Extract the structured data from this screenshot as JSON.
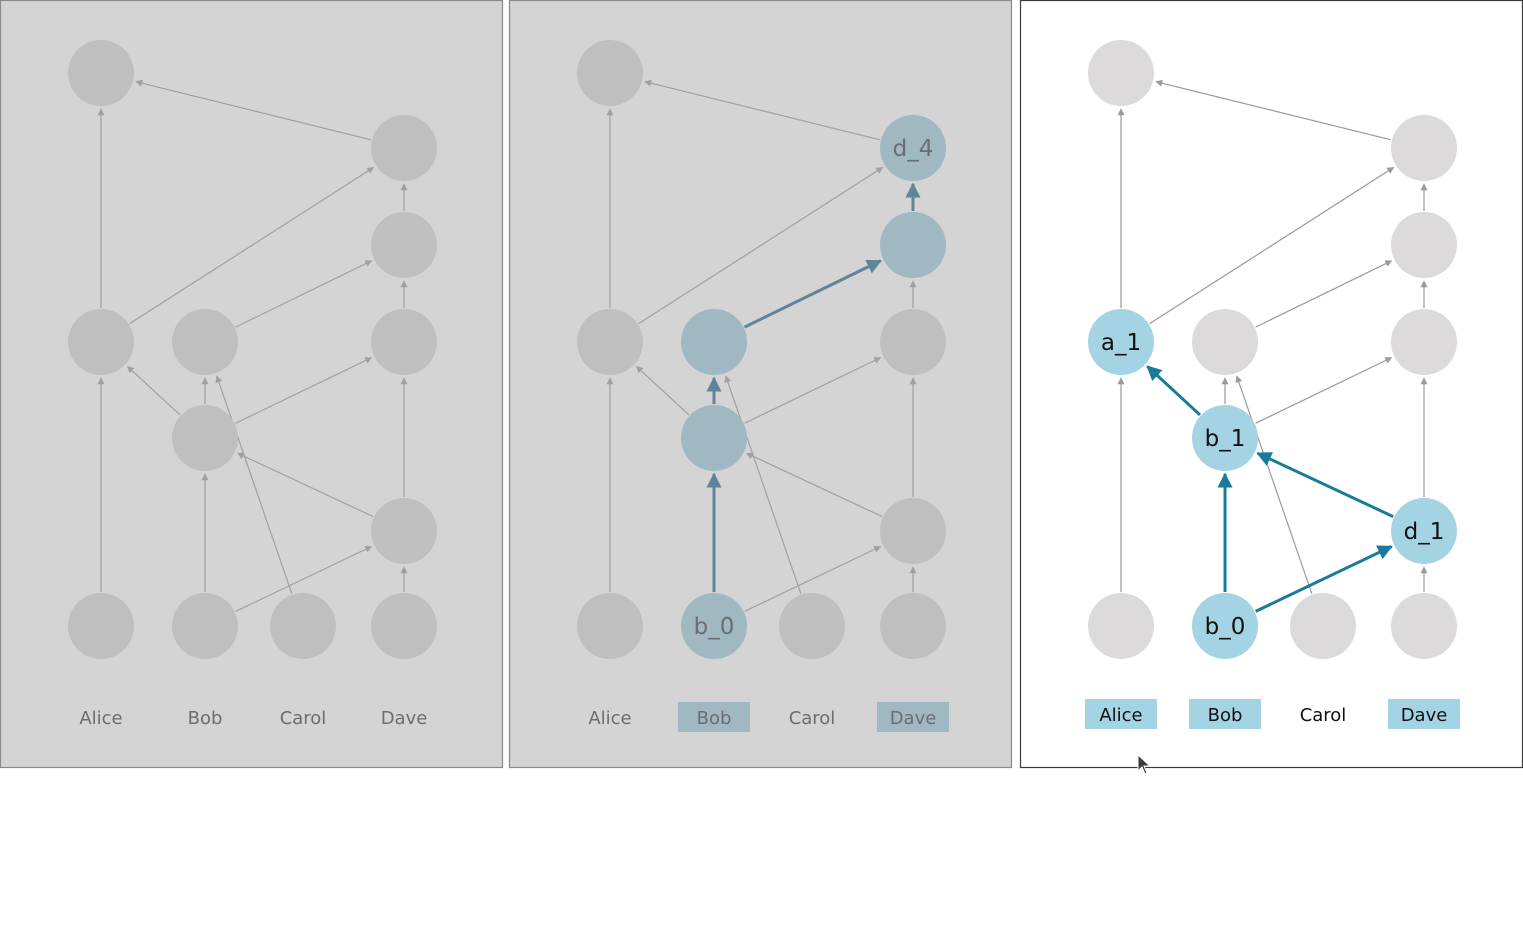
{
  "panels": [
    {
      "id": "panel-1",
      "theme": "dimmed",
      "columns": [
        {
          "key": "alice",
          "label": "Alice",
          "highlighted": false
        },
        {
          "key": "bob",
          "label": "Bob",
          "highlighted": false
        },
        {
          "key": "carol",
          "label": "Carol",
          "highlighted": false
        },
        {
          "key": "dave",
          "label": "Dave",
          "highlighted": false
        }
      ],
      "highlight_nodes": [],
      "highlight_edges": [],
      "node_labels": {}
    },
    {
      "id": "panel-2",
      "theme": "dimmed",
      "columns": [
        {
          "key": "alice",
          "label": "Alice",
          "highlighted": false
        },
        {
          "key": "bob",
          "label": "Bob",
          "highlighted": true
        },
        {
          "key": "carol",
          "label": "Carol",
          "highlighted": false
        },
        {
          "key": "dave",
          "label": "Dave",
          "highlighted": true
        }
      ],
      "highlight_nodes": [
        "b0",
        "b1",
        "b_mid",
        "d_mid",
        "d4"
      ],
      "highlight_edges": [
        [
          "b0",
          "b1"
        ],
        [
          "b1",
          "b_mid"
        ],
        [
          "b_mid",
          "d_mid"
        ],
        [
          "d_mid",
          "d4"
        ]
      ],
      "node_labels": {
        "b0": "b_0",
        "d4": "d_4"
      }
    },
    {
      "id": "panel-3",
      "theme": "active",
      "columns": [
        {
          "key": "alice",
          "label": "Alice",
          "highlighted": true
        },
        {
          "key": "bob",
          "label": "Bob",
          "highlighted": true
        },
        {
          "key": "carol",
          "label": "Carol",
          "highlighted": false
        },
        {
          "key": "dave",
          "label": "Dave",
          "highlighted": true
        }
      ],
      "highlight_nodes": [
        "a1",
        "b1",
        "b0",
        "d1"
      ],
      "highlight_edges": [
        [
          "b0",
          "b1"
        ],
        [
          "b0",
          "d1"
        ],
        [
          "d1",
          "b1"
        ],
        [
          "b1",
          "a1"
        ]
      ],
      "node_labels": {
        "a1": "a_1",
        "b1": "b_1",
        "b0": "b_0",
        "d1": "d_1"
      }
    }
  ],
  "graph": {
    "nodes": [
      {
        "id": "a0",
        "col": "alice",
        "level": "base"
      },
      {
        "id": "a1",
        "col": "alice",
        "level": "mid"
      },
      {
        "id": "a_top",
        "col": "alice",
        "level": "top"
      },
      {
        "id": "b0",
        "col": "bob",
        "level": "base"
      },
      {
        "id": "b1",
        "col": "bob",
        "level": "low"
      },
      {
        "id": "b_mid",
        "col": "bob",
        "level": "mid"
      },
      {
        "id": "c0",
        "col": "carol",
        "level": "base"
      },
      {
        "id": "d0",
        "col": "dave",
        "level": "base"
      },
      {
        "id": "d1",
        "col": "dave",
        "level": "lowd"
      },
      {
        "id": "d2",
        "col": "dave",
        "level": "mid"
      },
      {
        "id": "d_mid",
        "col": "dave",
        "level": "upper"
      },
      {
        "id": "d4",
        "col": "dave",
        "level": "high"
      }
    ],
    "edges": [
      [
        "a0",
        "a1"
      ],
      [
        "a1",
        "a_top"
      ],
      [
        "a1",
        "d4"
      ],
      [
        "b_mid",
        "d_mid"
      ],
      [
        "b0",
        "b1"
      ],
      [
        "b1",
        "b_mid"
      ],
      [
        "b1",
        "a1"
      ],
      [
        "b1",
        "d2"
      ],
      [
        "c0",
        "b_mid"
      ],
      [
        "b0",
        "d1"
      ],
      [
        "d1",
        "b1"
      ],
      [
        "d0",
        "d1"
      ],
      [
        "d1",
        "d2"
      ],
      [
        "d2",
        "d_mid"
      ],
      [
        "d_mid",
        "d4"
      ],
      [
        "d4",
        "a_top"
      ]
    ]
  },
  "colors": {
    "dim_bg": "#d4d4d4",
    "dim_node": "#c0bfc0",
    "dim_edge": "#a0a0a0",
    "dim_label": "#6a6e72",
    "dim_highlight": "#9fb8c2",
    "dim_highlight_edge": "#5e8598",
    "active_bg": "#ffffff",
    "active_node": "#dcdadb",
    "active_edge": "#9a9a9a",
    "active_highlight": "#a4d4e4",
    "active_highlight_edge": "#1a7a9a",
    "active_label": "#111111"
  }
}
